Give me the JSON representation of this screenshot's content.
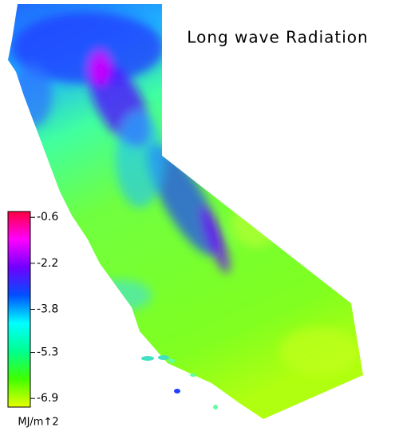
{
  "title": "Long wave Radiation",
  "colorbar": {
    "label": "MJ/m↑2",
    "lim": [
      -7.2,
      -0.4
    ],
    "ticks": [
      -0.6,
      -2.2,
      -3.8,
      -5.3,
      -6.9
    ],
    "colors": [
      "#e8ff00",
      "#40ff00",
      "#00ff90",
      "#00ffff",
      "#0050ff",
      "#7000ff",
      "#ff00ff",
      "#ff0040"
    ]
  }
}
